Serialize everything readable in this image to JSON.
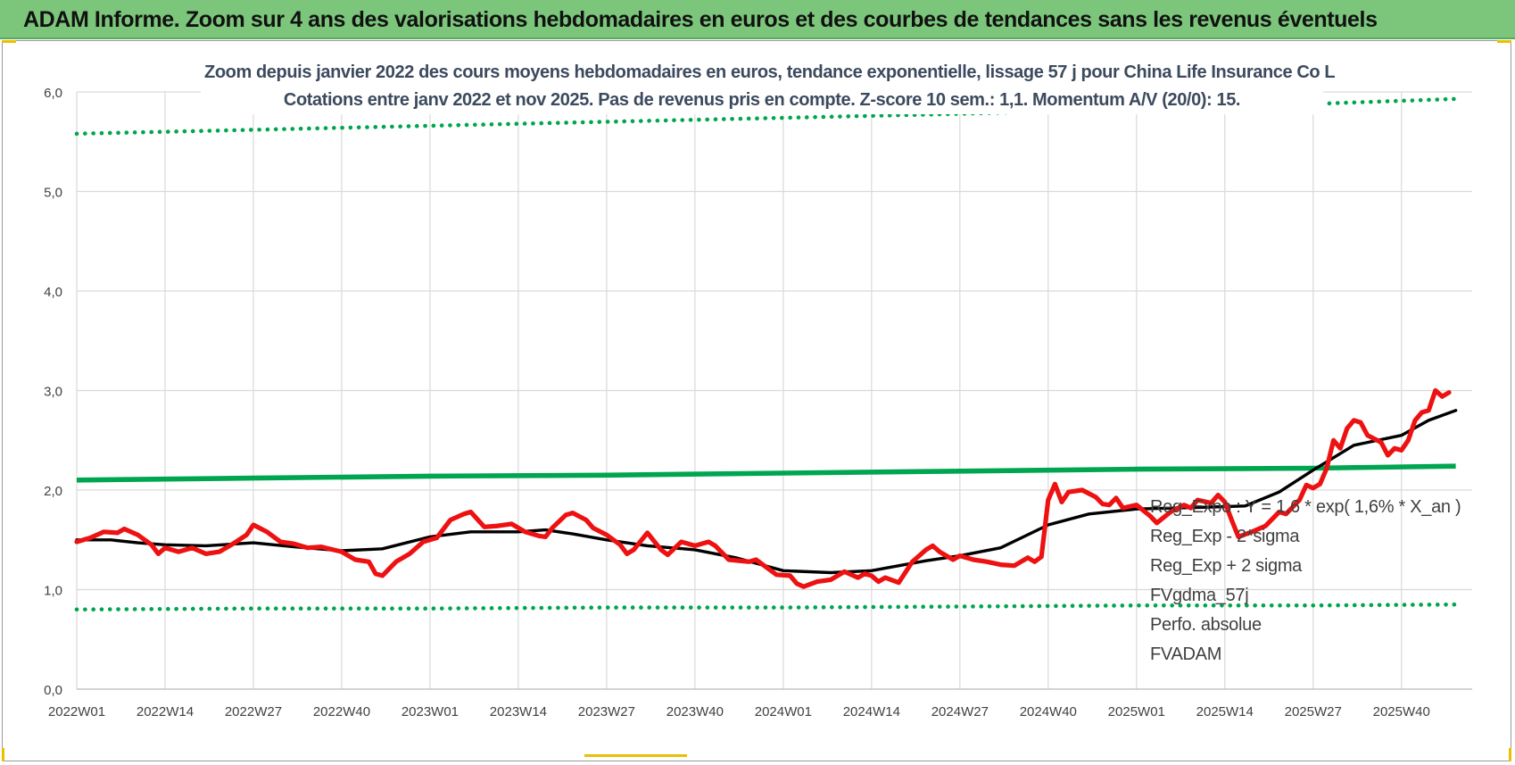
{
  "banner": {
    "title": "ADAM Informe. Zoom sur 4 ans des valorisations hebdomadaires en euros et des courbes de tendances sans les revenus éventuels"
  },
  "colors": {
    "banner_bg": "#7cc67c",
    "trend_green": "#00a64f",
    "fvadam_red": "#ee1111",
    "fvgdma_black": "#000000",
    "perfo_red": "#ff0000",
    "grid": "#d9d9d9"
  },
  "chart_data": {
    "type": "line",
    "title": "Zoom depuis janvier 2022 des cours moyens hebdomadaires en euros, tendance exponentielle, lissage 57 j pour China Life Insurance Co L",
    "subtitle": "Cotations entre janv 2022 et nov 2025. Pas de revenus pris en compte. Z-score 10 sem.: 1,1. Momentum A/V (20/0): 15.",
    "xlabel": "",
    "ylabel": "",
    "ylim": [
      0,
      6
    ],
    "yticks": [
      "0,0",
      "1,0",
      "2,0",
      "3,0",
      "4,0",
      "5,0",
      "6,0"
    ],
    "x_start_label": "2022W01",
    "x_end_label": "2025W48",
    "xticks": [
      "2022W01",
      "2022W14",
      "2022W27",
      "2022W40",
      "2023W01",
      "2023W14",
      "2023W27",
      "2023W40",
      "2024W01",
      "2024W14",
      "2024W27",
      "2024W40",
      "2025W01",
      "2025W14",
      "2025W27",
      "2025W40"
    ],
    "grid": true,
    "legend_position": "bottom-right",
    "series": [
      {
        "name": "Reg_Expo : Y = 1,6 * exp( 1,6% *  X_an )",
        "style": "solid",
        "color": "#00a64f",
        "points": [
          [
            "2022W01",
            2.1
          ],
          [
            "2022W27",
            2.12
          ],
          [
            "2023W01",
            2.14
          ],
          [
            "2023W27",
            2.15
          ],
          [
            "2024W01",
            2.17
          ],
          [
            "2024W27",
            2.19
          ],
          [
            "2025W01",
            2.21
          ],
          [
            "2025W27",
            2.22
          ],
          [
            "2025W48",
            2.24
          ]
        ]
      },
      {
        "name": "Reg_Exp - 2*sigma",
        "style": "dotted",
        "color": "#00a64f",
        "points": [
          [
            "2022W01",
            0.8
          ],
          [
            "2022W27",
            0.81
          ],
          [
            "2023W01",
            0.81
          ],
          [
            "2023W27",
            0.82
          ],
          [
            "2024W01",
            0.82
          ],
          [
            "2024W27",
            0.83
          ],
          [
            "2025W01",
            0.84
          ],
          [
            "2025W27",
            0.84
          ],
          [
            "2025W48",
            0.85
          ]
        ]
      },
      {
        "name": "Reg_Exp + 2 sigma",
        "style": "dotted",
        "color": "#00a64f",
        "points": [
          [
            "2022W01",
            5.58
          ],
          [
            "2022W27",
            5.62
          ],
          [
            "2023W01",
            5.66
          ],
          [
            "2023W27",
            5.7
          ],
          [
            "2024W01",
            5.74
          ],
          [
            "2024W27",
            5.78
          ],
          [
            "2025W01",
            5.83
          ],
          [
            "2025W27",
            5.88
          ],
          [
            "2025W48",
            5.93
          ]
        ]
      },
      {
        "name": "FVgdma_57j",
        "style": "solid",
        "color": "#000000",
        "points": [
          [
            "2022W01",
            1.5
          ],
          [
            "2022W06",
            1.5
          ],
          [
            "2022W10",
            1.47
          ],
          [
            "2022W14",
            1.45
          ],
          [
            "2022W20",
            1.44
          ],
          [
            "2022W27",
            1.47
          ],
          [
            "2022W33",
            1.43
          ],
          [
            "2022W40",
            1.39
          ],
          [
            "2022W46",
            1.41
          ],
          [
            "2023W01",
            1.53
          ],
          [
            "2023W07",
            1.58
          ],
          [
            "2023W14",
            1.58
          ],
          [
            "2023W18",
            1.6
          ],
          [
            "2023W22",
            1.56
          ],
          [
            "2023W27",
            1.5
          ],
          [
            "2023W33",
            1.44
          ],
          [
            "2023W40",
            1.4
          ],
          [
            "2023W46",
            1.32
          ],
          [
            "2024W01",
            1.19
          ],
          [
            "2024W08",
            1.17
          ],
          [
            "2024W14",
            1.19
          ],
          [
            "2024W22",
            1.29
          ],
          [
            "2024W27",
            1.34
          ],
          [
            "2024W33",
            1.42
          ],
          [
            "2024W40",
            1.65
          ],
          [
            "2024W46",
            1.76
          ],
          [
            "2025W01",
            1.81
          ],
          [
            "2025W07",
            1.82
          ],
          [
            "2025W12",
            1.83
          ],
          [
            "2025W17",
            1.84
          ],
          [
            "2025W22",
            1.98
          ],
          [
            "2025W27",
            2.2
          ],
          [
            "2025W33",
            2.45
          ],
          [
            "2025W40",
            2.55
          ],
          [
            "2025W44",
            2.7
          ],
          [
            "2025W48",
            2.8
          ]
        ]
      },
      {
        "name": "Perfo. absolue",
        "style": "dotted",
        "color": "#ff0000",
        "points": []
      },
      {
        "name": "FVADAM",
        "style": "solid",
        "color": "#ee1111",
        "points": [
          [
            "2022W01",
            1.48
          ],
          [
            "2022W03",
            1.52
          ],
          [
            "2022W05",
            1.58
          ],
          [
            "2022W07",
            1.57
          ],
          [
            "2022W08",
            1.61
          ],
          [
            "2022W10",
            1.55
          ],
          [
            "2022W12",
            1.45
          ],
          [
            "2022W13",
            1.36
          ],
          [
            "2022W14",
            1.42
          ],
          [
            "2022W16",
            1.38
          ],
          [
            "2022W18",
            1.42
          ],
          [
            "2022W20",
            1.36
          ],
          [
            "2022W22",
            1.38
          ],
          [
            "2022W24",
            1.46
          ],
          [
            "2022W26",
            1.55
          ],
          [
            "2022W27",
            1.65
          ],
          [
            "2022W29",
            1.58
          ],
          [
            "2022W31",
            1.48
          ],
          [
            "2022W33",
            1.46
          ],
          [
            "2022W35",
            1.42
          ],
          [
            "2022W37",
            1.43
          ],
          [
            "2022W40",
            1.38
          ],
          [
            "2022W42",
            1.3
          ],
          [
            "2022W44",
            1.28
          ],
          [
            "2022W45",
            1.16
          ],
          [
            "2022W46",
            1.14
          ],
          [
            "2022W48",
            1.28
          ],
          [
            "2022W50",
            1.36
          ],
          [
            "2022W52",
            1.48
          ],
          [
            "2023W02",
            1.52
          ],
          [
            "2023W04",
            1.7
          ],
          [
            "2023W06",
            1.76
          ],
          [
            "2023W07",
            1.78
          ],
          [
            "2023W09",
            1.63
          ],
          [
            "2023W11",
            1.64
          ],
          [
            "2023W13",
            1.66
          ],
          [
            "2023W15",
            1.58
          ],
          [
            "2023W17",
            1.54
          ],
          [
            "2023W18",
            1.53
          ],
          [
            "2023W19",
            1.62
          ],
          [
            "2023W21",
            1.75
          ],
          [
            "2023W22",
            1.77
          ],
          [
            "2023W24",
            1.7
          ],
          [
            "2023W25",
            1.62
          ],
          [
            "2023W27",
            1.55
          ],
          [
            "2023W29",
            1.45
          ],
          [
            "2023W30",
            1.36
          ],
          [
            "2023W31",
            1.4
          ],
          [
            "2023W33",
            1.57
          ],
          [
            "2023W35",
            1.4
          ],
          [
            "2023W36",
            1.35
          ],
          [
            "2023W38",
            1.48
          ],
          [
            "2023W40",
            1.44
          ],
          [
            "2023W42",
            1.48
          ],
          [
            "2023W43",
            1.44
          ],
          [
            "2023W45",
            1.3
          ],
          [
            "2023W48",
            1.28
          ],
          [
            "2023W49",
            1.3
          ],
          [
            "2023W51",
            1.2
          ],
          [
            "2023W52",
            1.15
          ],
          [
            "2024W02",
            1.14
          ],
          [
            "2024W03",
            1.06
          ],
          [
            "2024W04",
            1.03
          ],
          [
            "2024W06",
            1.08
          ],
          [
            "2024W08",
            1.1
          ],
          [
            "2024W10",
            1.18
          ],
          [
            "2024W12",
            1.12
          ],
          [
            "2024W13",
            1.16
          ],
          [
            "2024W14",
            1.14
          ],
          [
            "2024W15",
            1.08
          ],
          [
            "2024W16",
            1.12
          ],
          [
            "2024W18",
            1.07
          ],
          [
            "2024W20",
            1.28
          ],
          [
            "2024W22",
            1.4
          ],
          [
            "2024W23",
            1.44
          ],
          [
            "2024W24",
            1.38
          ],
          [
            "2024W26",
            1.3
          ],
          [
            "2024W27",
            1.34
          ],
          [
            "2024W29",
            1.3
          ],
          [
            "2024W31",
            1.28
          ],
          [
            "2024W33",
            1.25
          ],
          [
            "2024W35",
            1.24
          ],
          [
            "2024W37",
            1.32
          ],
          [
            "2024W38",
            1.28
          ],
          [
            "2024W39",
            1.33
          ],
          [
            "2024W40",
            1.9
          ],
          [
            "2024W41",
            2.06
          ],
          [
            "2024W42",
            1.88
          ],
          [
            "2024W43",
            1.98
          ],
          [
            "2024W45",
            2.0
          ],
          [
            "2024W47",
            1.93
          ],
          [
            "2024W48",
            1.86
          ],
          [
            "2024W49",
            1.85
          ],
          [
            "2024W50",
            1.92
          ],
          [
            "2024W51",
            1.82
          ],
          [
            "2025W01",
            1.85
          ],
          [
            "2025W03",
            1.74
          ],
          [
            "2025W04",
            1.67
          ],
          [
            "2025W06",
            1.78
          ],
          [
            "2025W08",
            1.85
          ],
          [
            "2025W09",
            1.82
          ],
          [
            "2025W10",
            1.9
          ],
          [
            "2025W12",
            1.87
          ],
          [
            "2025W13",
            1.95
          ],
          [
            "2025W14",
            1.88
          ],
          [
            "2025W15",
            1.7
          ],
          [
            "2025W16",
            1.53
          ],
          [
            "2025W18",
            1.58
          ],
          [
            "2025W20",
            1.64
          ],
          [
            "2025W22",
            1.78
          ],
          [
            "2025W23",
            1.76
          ],
          [
            "2025W25",
            1.9
          ],
          [
            "2025W26",
            2.05
          ],
          [
            "2025W27",
            2.02
          ],
          [
            "2025W28",
            2.06
          ],
          [
            "2025W29",
            2.22
          ],
          [
            "2025W30",
            2.5
          ],
          [
            "2025W31",
            2.42
          ],
          [
            "2025W32",
            2.62
          ],
          [
            "2025W33",
            2.7
          ],
          [
            "2025W34",
            2.68
          ],
          [
            "2025W35",
            2.55
          ],
          [
            "2025W37",
            2.48
          ],
          [
            "2025W38",
            2.35
          ],
          [
            "2025W39",
            2.42
          ],
          [
            "2025W40",
            2.4
          ],
          [
            "2025W41",
            2.5
          ],
          [
            "2025W42",
            2.7
          ],
          [
            "2025W43",
            2.78
          ],
          [
            "2025W44",
            2.8
          ],
          [
            "2025W45",
            3.0
          ],
          [
            "2025W46",
            2.94
          ],
          [
            "2025W47",
            2.98
          ]
        ]
      }
    ]
  }
}
